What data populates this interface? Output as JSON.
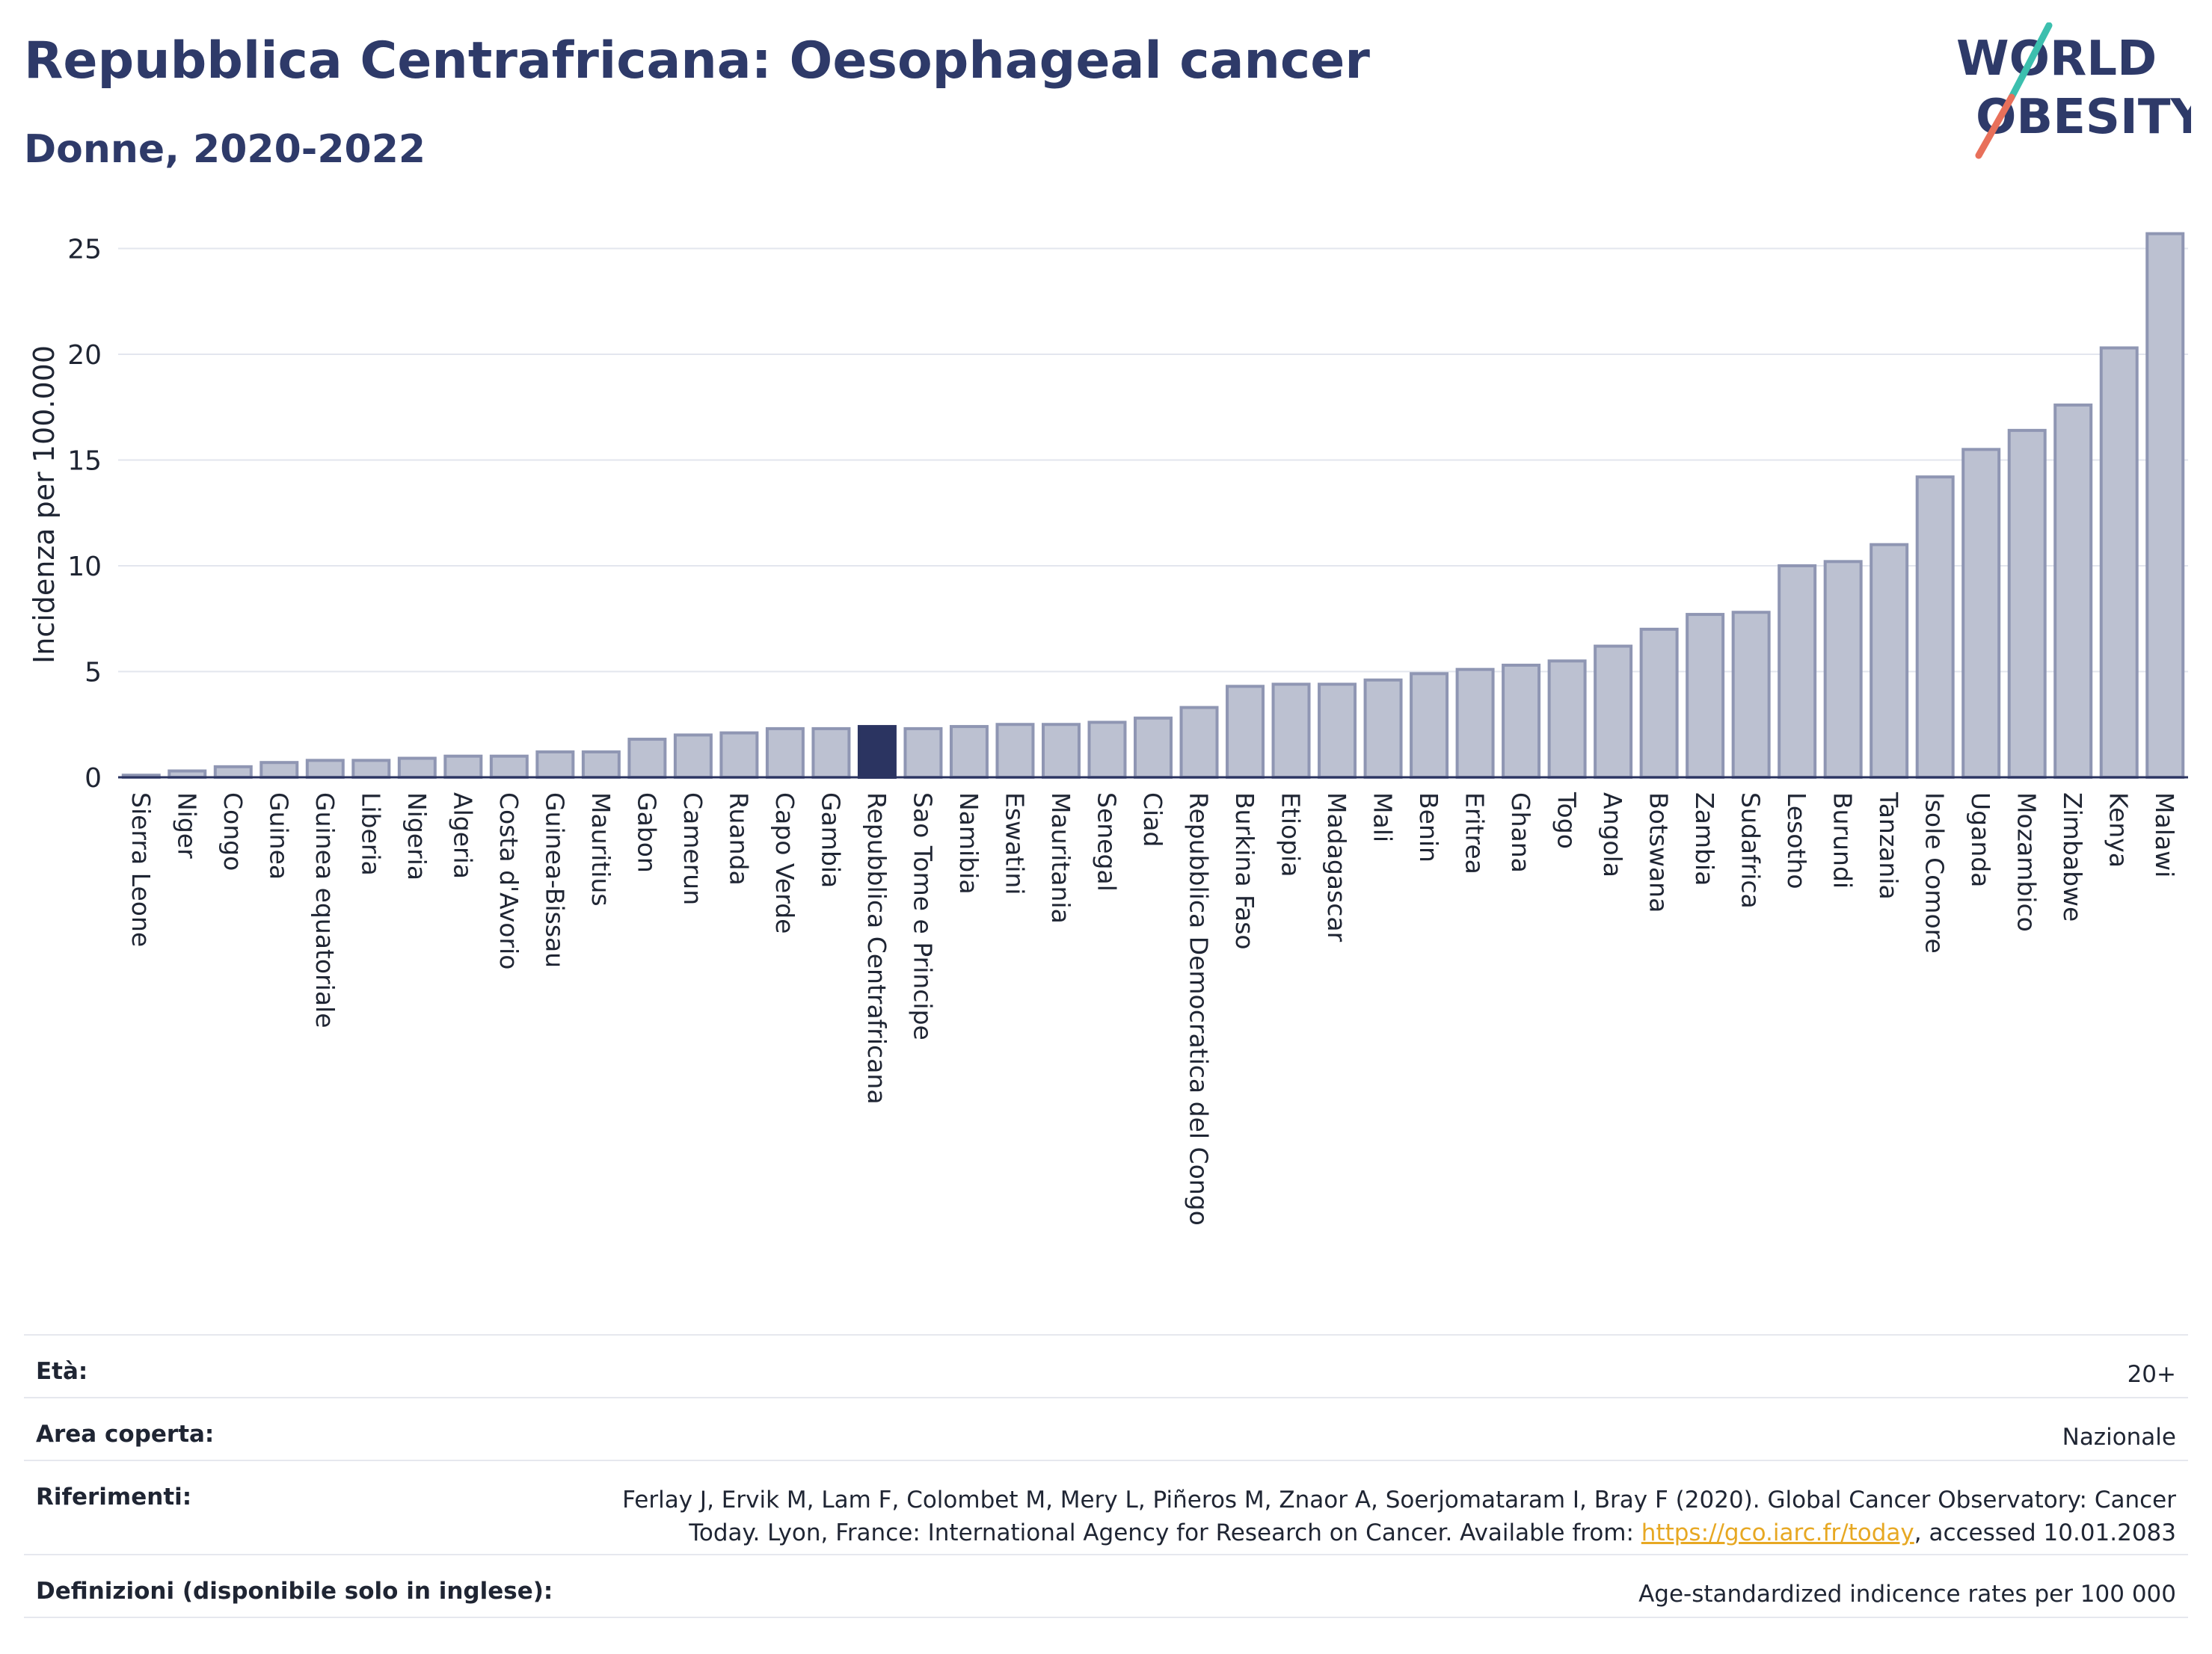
{
  "header": {
    "title": "Repubblica Centrafricana: Oesophageal cancer",
    "subtitle": "Donne, 2020-2022"
  },
  "logo": {
    "line1": "WORLD",
    "line2": "OBESITY"
  },
  "colors": {
    "bar_fill": "#bcc1d1",
    "bar_stroke": "#8f96b3",
    "highlight": "#2b3461",
    "grid": "#e3e6ee",
    "text": "#1f2533",
    "link": "#e7a823"
  },
  "chart_data": {
    "type": "bar",
    "ylabel": "Incidenza per 100.000",
    "ylim": [
      0,
      26.5
    ],
    "yticks": [
      0,
      5,
      10,
      15,
      20,
      25
    ],
    "highlight": "Repubblica Centrafricana",
    "categories": [
      "Sierra Leone",
      "Niger",
      "Congo",
      "Guinea",
      "Guinea equatoriale",
      "Liberia",
      "Nigeria",
      "Algeria",
      "Costa d'Avorio",
      "Guinea-Bissau",
      "Mauritius",
      "Gabon",
      "Camerun",
      "Ruanda",
      "Capo Verde",
      "Gambia",
      "Repubblica Centrafricana",
      "Sao Tome e Principe",
      "Namibia",
      "Eswatini",
      "Mauritania",
      "Senegal",
      "Ciad",
      "Repubblica Democratica del Congo",
      "Burkina Faso",
      "Etiopia",
      "Madagascar",
      "Mali",
      "Benin",
      "Eritrea",
      "Ghana",
      "Togo",
      "Angola",
      "Botswana",
      "Zambia",
      "Sudafrica",
      "Lesotho",
      "Burundi",
      "Tanzania",
      "Isole Comore",
      "Uganda",
      "Mozambico",
      "Zimbabwe",
      "Kenya",
      "Malawi"
    ],
    "values": [
      0.1,
      0.3,
      0.5,
      0.7,
      0.8,
      0.8,
      0.9,
      1.0,
      1.0,
      1.2,
      1.2,
      1.8,
      2.0,
      2.1,
      2.3,
      2.3,
      2.4,
      2.3,
      2.4,
      2.5,
      2.5,
      2.6,
      2.8,
      3.3,
      4.3,
      4.4,
      4.4,
      4.6,
      4.9,
      5.1,
      5.3,
      5.5,
      6.2,
      7.0,
      7.7,
      7.8,
      10.0,
      10.2,
      11.0,
      14.2,
      15.5,
      16.4,
      17.6,
      20.3,
      25.7
    ]
  },
  "info": {
    "eta_label": "Età:",
    "eta_value": "20+",
    "area_label": "Area coperta:",
    "area_value": "Nazionale",
    "rif_label": "Riferimenti:",
    "rif_line1": "Ferlay J, Ervik M, Lam F, Colombet M, Mery L, Piñeros M, Znaor A, Soerjomataram I, Bray F (2020). Global Cancer Observatory: Cancer",
    "rif_line2_pre": "Today. Lyon, France: International Agency for Research on Cancer. Available from: ",
    "rif_link": "https://gco.iarc.fr/today",
    "rif_line2_post": ", accessed 10.01.2083",
    "def_label": "Definizioni (disponibile solo in inglese):",
    "def_value": "Age-standardized indicence rates per 100 000"
  }
}
